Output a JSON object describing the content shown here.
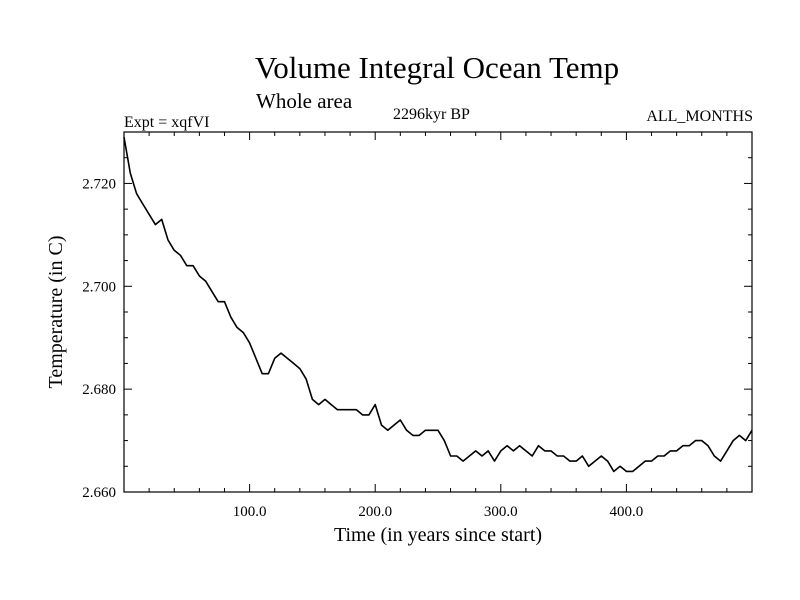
{
  "chart_data": {
    "type": "line",
    "title": "Volume Integral Ocean Temp",
    "subtitle": "Whole area",
    "annotations": {
      "left": "Expt = xqfVI",
      "center": "2296kyr BP",
      "right": "ALL_MONTHS"
    },
    "xlabel": "Time (in years since start)",
    "ylabel": "Temperature (in C)",
    "xlim": [
      0,
      500
    ],
    "ylim": [
      2.66,
      2.73
    ],
    "x_ticks": [
      100,
      200,
      300,
      400
    ],
    "x_tick_labels": [
      "100.0",
      "200.0",
      "300.0",
      "400.0"
    ],
    "y_ticks": [
      2.66,
      2.68,
      2.7,
      2.72
    ],
    "y_tick_labels": [
      "2.660",
      "2.680",
      "2.700",
      "2.720"
    ],
    "grid": false,
    "series": [
      {
        "name": "Volume integral ocean temperature",
        "x": [
          0,
          5,
          10,
          15,
          20,
          25,
          30,
          35,
          40,
          45,
          50,
          55,
          60,
          65,
          70,
          75,
          80,
          85,
          90,
          95,
          100,
          105,
          110,
          115,
          120,
          125,
          130,
          135,
          140,
          145,
          150,
          155,
          160,
          165,
          170,
          175,
          180,
          185,
          190,
          195,
          200,
          205,
          210,
          215,
          220,
          225,
          230,
          235,
          240,
          245,
          250,
          255,
          260,
          265,
          270,
          275,
          280,
          285,
          290,
          295,
          300,
          305,
          310,
          315,
          320,
          325,
          330,
          335,
          340,
          345,
          350,
          355,
          360,
          365,
          370,
          375,
          380,
          385,
          390,
          395,
          400,
          405,
          410,
          415,
          420,
          425,
          430,
          435,
          440,
          445,
          450,
          455,
          460,
          465,
          470,
          475,
          480,
          485,
          490,
          495,
          500
        ],
        "y": [
          2.729,
          2.722,
          2.718,
          2.716,
          2.714,
          2.712,
          2.713,
          2.709,
          2.707,
          2.706,
          2.704,
          2.704,
          2.702,
          2.701,
          2.699,
          2.697,
          2.697,
          2.694,
          2.692,
          2.691,
          2.689,
          2.686,
          2.683,
          2.683,
          2.686,
          2.687,
          2.686,
          2.685,
          2.684,
          2.682,
          2.678,
          2.677,
          2.678,
          2.677,
          2.676,
          2.676,
          2.676,
          2.676,
          2.675,
          2.675,
          2.677,
          2.673,
          2.672,
          2.673,
          2.674,
          2.672,
          2.671,
          2.671,
          2.672,
          2.672,
          2.672,
          2.67,
          2.667,
          2.667,
          2.666,
          2.667,
          2.668,
          2.667,
          2.668,
          2.666,
          2.668,
          2.669,
          2.668,
          2.669,
          2.668,
          2.667,
          2.669,
          2.668,
          2.668,
          2.667,
          2.667,
          2.666,
          2.666,
          2.667,
          2.665,
          2.666,
          2.667,
          2.666,
          2.664,
          2.665,
          2.664,
          2.664,
          2.665,
          2.666,
          2.666,
          2.667,
          2.667,
          2.668,
          2.668,
          2.669,
          2.669,
          2.67,
          2.67,
          2.669,
          2.667,
          2.666,
          2.668,
          2.67,
          2.671,
          2.67,
          2.672
        ]
      }
    ]
  }
}
